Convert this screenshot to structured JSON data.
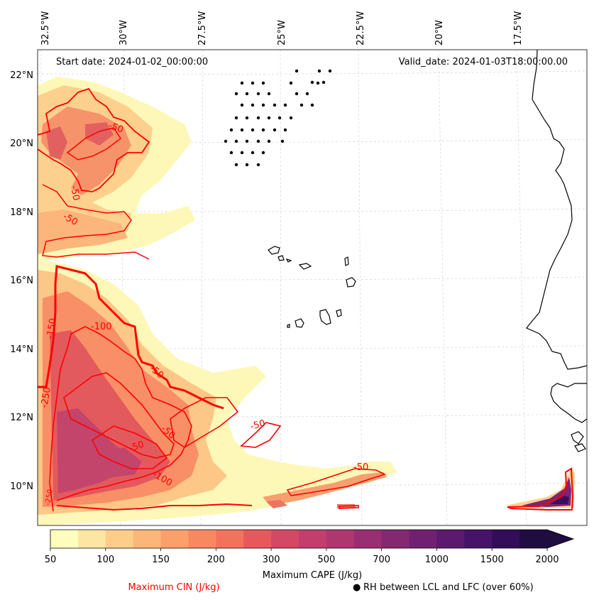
{
  "map": {
    "start_label": "Start date: 2024-01-02_00:00:00",
    "valid_label": "Valid_date: 2024-01-03T18:00:00.00",
    "lon_labels": [
      "32.5°W",
      "30°W",
      "27.5°W",
      "25°W",
      "22.5°W",
      "20°W",
      "17.5°W"
    ],
    "lat_labels": [
      "22°N",
      "20°N",
      "18°N",
      "16°N",
      "14°N",
      "12°N",
      "10°N"
    ],
    "contour_labels": [
      "-50",
      "-50",
      "-50",
      "-100",
      "-150",
      "-250",
      "-50",
      "-50",
      "-50",
      "-100",
      "-50",
      "-50",
      "-250"
    ],
    "colors": {
      "cin_line": "#ff0000",
      "coast": "#000000",
      "grid": "#cccccc",
      "cape_low": "#fdf8b4",
      "cape_mid": "#f38c6a",
      "cape_high": "#2b1350"
    }
  },
  "colorbar": {
    "ticks": [
      "50",
      "100",
      "150",
      "200",
      "300",
      "500",
      "700",
      "1000",
      "1500",
      "2000"
    ],
    "colors": [
      "#fefdbd",
      "#fde5a2",
      "#fdcd8a",
      "#fcb679",
      "#fb9f6b",
      "#f88860",
      "#f3725b",
      "#e6585c",
      "#d44866",
      "#c23f6d",
      "#ae3770",
      "#992f72",
      "#852872",
      "#712071",
      "#5c1a6e",
      "#471368",
      "#320e58",
      "#1f0c41"
    ],
    "label": "Maximum CAPE (J/kg)"
  },
  "legend": {
    "cin_label": "Maximum CIN (J/kg)",
    "rh_label": "RH between LCL and LFC (over 60%)",
    "rh_marker": "●"
  }
}
